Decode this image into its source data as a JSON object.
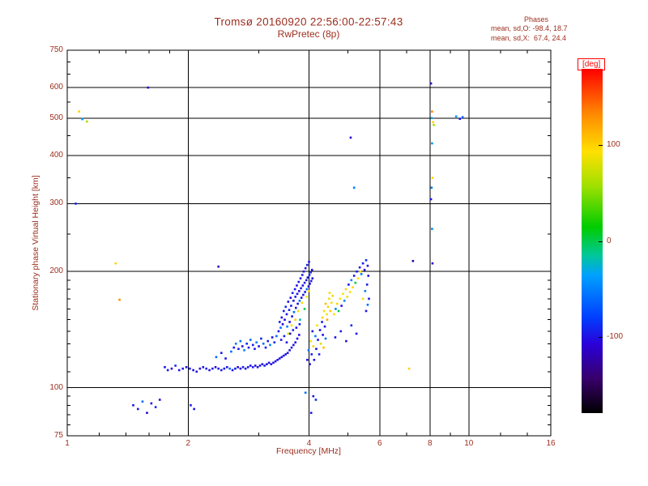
{
  "chart_data": {
    "type": "scatter",
    "title": "Tromsø 20160920 22:56:00-22:57:43",
    "subtitle": "RwPretec (8p)",
    "stats": {
      "title": "Phases",
      "o": "mean, sd,O: -98.4, 18.7",
      "x": "mean, sd,X:  67.4, 24.4"
    },
    "xlabel": "Frequency [MHz]",
    "ylabel": "Stationary phase Virtual Height [km]",
    "x_scale": "log",
    "x_range": [
      1,
      16
    ],
    "x_ticks": [
      1,
      2,
      4,
      6,
      8,
      10,
      16
    ],
    "x_minor_ticks": [
      1.2,
      1.4,
      1.6,
      1.8,
      3,
      5,
      7,
      9,
      12,
      14
    ],
    "y_scale": "log",
    "y_range": [
      75,
      750
    ],
    "y_ticks": [
      75,
      100,
      200,
      300,
      400,
      500,
      600,
      750
    ],
    "y_minor_ticks": [
      80,
      85,
      90,
      95,
      110,
      120,
      130,
      140,
      150,
      160,
      170,
      180,
      190,
      250,
      350,
      450,
      550,
      650,
      700
    ],
    "grid": true,
    "colorbar": {
      "label": "[deg]",
      "range": [
        -180,
        180
      ],
      "ticks": [
        100,
        0,
        -100
      ],
      "stops": [
        [
          0.0,
          "#000000"
        ],
        [
          0.1,
          "#38006b"
        ],
        [
          0.2,
          "#2a00d8"
        ],
        [
          0.28,
          "#0040ff"
        ],
        [
          0.4,
          "#00a0ff"
        ],
        [
          0.46,
          "#00c896"
        ],
        [
          0.54,
          "#00cc00"
        ],
        [
          0.66,
          "#a0e000"
        ],
        [
          0.76,
          "#ffe000"
        ],
        [
          0.87,
          "#ff8800"
        ],
        [
          1.0,
          "#ff0000"
        ]
      ]
    },
    "colors": {
      "text": "#9c2f1e",
      "axis": "#000000",
      "deg_label": "#ff0000",
      "background": "#ffffff"
    },
    "points": [
      [
        1.75,
        113,
        -100
      ],
      [
        1.78,
        111,
        -95
      ],
      [
        1.82,
        112,
        -105
      ],
      [
        1.86,
        114,
        -90
      ],
      [
        1.9,
        111,
        -100
      ],
      [
        1.94,
        112,
        -98
      ],
      [
        1.98,
        113,
        -102
      ],
      [
        2.02,
        112,
        -95
      ],
      [
        2.06,
        111,
        -100
      ],
      [
        2.1,
        110,
        -97
      ],
      [
        2.14,
        112,
        -103
      ],
      [
        2.18,
        113,
        -100
      ],
      [
        2.22,
        112,
        -96
      ],
      [
        2.26,
        111,
        -101
      ],
      [
        2.3,
        112,
        -99
      ],
      [
        2.34,
        113,
        -104
      ],
      [
        2.38,
        112,
        -100
      ],
      [
        2.42,
        111,
        -95
      ],
      [
        2.46,
        112,
        -102
      ],
      [
        2.5,
        113,
        -100
      ],
      [
        2.54,
        112,
        -60
      ],
      [
        2.58,
        111,
        -100
      ],
      [
        2.62,
        112,
        -98
      ],
      [
        2.66,
        113,
        -105
      ],
      [
        2.7,
        112,
        -100
      ],
      [
        2.74,
        113,
        -95
      ],
      [
        2.78,
        112,
        -101
      ],
      [
        2.82,
        113,
        -99
      ],
      [
        2.86,
        114,
        -100
      ],
      [
        2.9,
        113,
        -97
      ],
      [
        2.94,
        114,
        -102
      ],
      [
        2.98,
        113,
        -100
      ],
      [
        3.02,
        114,
        -98
      ],
      [
        3.06,
        115,
        -100
      ],
      [
        3.1,
        114,
        -95
      ],
      [
        3.14,
        115,
        -103
      ],
      [
        3.18,
        116,
        -100
      ],
      [
        3.22,
        115,
        -99
      ],
      [
        3.26,
        116,
        -101
      ],
      [
        3.3,
        117,
        -100
      ],
      [
        3.34,
        118,
        -98
      ],
      [
        3.38,
        119,
        -102
      ],
      [
        3.42,
        120,
        -100
      ],
      [
        3.46,
        121,
        -97
      ],
      [
        3.5,
        122,
        -100
      ],
      [
        3.54,
        123,
        -99
      ],
      [
        3.58,
        125,
        -101
      ],
      [
        3.62,
        127,
        -100
      ],
      [
        3.66,
        129,
        -98
      ],
      [
        3.7,
        131,
        -100
      ],
      [
        3.74,
        134,
        -102
      ],
      [
        3.78,
        137,
        -100
      ],
      [
        2.35,
        120,
        -60
      ],
      [
        2.42,
        123,
        -95
      ],
      [
        2.48,
        119,
        -100
      ],
      [
        2.56,
        124,
        -60
      ],
      [
        2.6,
        127,
        -100
      ],
      [
        2.63,
        130,
        -55
      ],
      [
        2.67,
        126,
        -95
      ],
      [
        2.7,
        132,
        -60
      ],
      [
        2.73,
        128,
        -100
      ],
      [
        2.76,
        125,
        -50
      ],
      [
        2.8,
        130,
        -90
      ],
      [
        2.83,
        127,
        -100
      ],
      [
        2.86,
        133,
        -60
      ],
      [
        2.9,
        129,
        -95
      ],
      [
        2.93,
        126,
        -100
      ],
      [
        2.96,
        131,
        -55
      ],
      [
        3.0,
        128,
        -100
      ],
      [
        3.04,
        134,
        -90
      ],
      [
        3.08,
        130,
        -60
      ],
      [
        3.12,
        127,
        -100
      ],
      [
        3.16,
        132,
        -95
      ],
      [
        3.2,
        129,
        -50
      ],
      [
        3.24,
        135,
        -100
      ],
      [
        3.28,
        131,
        -90
      ],
      [
        3.32,
        136,
        -60
      ],
      [
        3.36,
        140,
        -100
      ],
      [
        3.38,
        148,
        -95
      ],
      [
        3.4,
        143,
        -60
      ],
      [
        3.42,
        152,
        -100
      ],
      [
        3.44,
        146,
        -105
      ],
      [
        3.46,
        158,
        -95
      ],
      [
        3.48,
        150,
        -100
      ],
      [
        3.5,
        162,
        -90
      ],
      [
        3.52,
        155,
        -100
      ],
      [
        3.53,
        144,
        -55
      ],
      [
        3.55,
        167,
        -100
      ],
      [
        3.57,
        159,
        -95
      ],
      [
        3.58,
        148,
        -100
      ],
      [
        3.6,
        171,
        -105
      ],
      [
        3.61,
        163,
        -98
      ],
      [
        3.63,
        153,
        -100
      ],
      [
        3.64,
        176,
        -90
      ],
      [
        3.66,
        168,
        -100
      ],
      [
        3.67,
        157,
        -60
      ],
      [
        3.69,
        180,
        -100
      ],
      [
        3.7,
        172,
        -95
      ],
      [
        3.71,
        161,
        -100
      ],
      [
        3.73,
        184,
        -102
      ],
      [
        3.74,
        175,
        -98
      ],
      [
        3.75,
        165,
        -100
      ],
      [
        3.77,
        188,
        -95
      ],
      [
        3.78,
        178,
        -100
      ],
      [
        3.79,
        168,
        -55
      ],
      [
        3.81,
        192,
        -100
      ],
      [
        3.82,
        181,
        -97
      ],
      [
        3.83,
        171,
        -100
      ],
      [
        3.85,
        196,
        -92
      ],
      [
        3.86,
        184,
        -100
      ],
      [
        3.87,
        174,
        -99
      ],
      [
        3.88,
        200,
        -100
      ],
      [
        3.9,
        187,
        -95
      ],
      [
        3.91,
        177,
        -100
      ],
      [
        3.92,
        204,
        -101
      ],
      [
        3.94,
        190,
        -100
      ],
      [
        3.95,
        180,
        -60
      ],
      [
        3.96,
        208,
        -95
      ],
      [
        3.97,
        193,
        -100
      ],
      [
        3.99,
        183,
        -98
      ],
      [
        4.0,
        212,
        -100
      ],
      [
        4.01,
        196,
        -90
      ],
      [
        4.02,
        186,
        -100
      ],
      [
        4.04,
        199,
        -95
      ],
      [
        4.05,
        189,
        -100
      ],
      [
        4.07,
        202,
        -97
      ],
      [
        4.08,
        192,
        -100
      ],
      [
        3.62,
        145,
        90
      ],
      [
        3.7,
        150,
        100
      ],
      [
        3.76,
        158,
        85
      ],
      [
        3.84,
        166,
        95
      ],
      [
        3.9,
        160,
        0
      ],
      [
        3.95,
        172,
        90
      ],
      [
        4.0,
        178,
        100
      ],
      [
        3.55,
        138,
        80
      ],
      [
        3.8,
        150,
        -20
      ],
      [
        3.41,
        133,
        -100
      ],
      [
        3.47,
        136,
        -95
      ],
      [
        3.52,
        131,
        -100
      ],
      [
        3.59,
        138,
        -100
      ],
      [
        3.65,
        141,
        -90
      ],
      [
        3.72,
        143,
        -100
      ],
      [
        3.79,
        146,
        -95
      ],
      [
        3.96,
        118,
        -100
      ],
      [
        3.99,
        125,
        -60
      ],
      [
        4.02,
        115,
        -100
      ],
      [
        4.04,
        132,
        90
      ],
      [
        4.06,
        122,
        -95
      ],
      [
        4.08,
        140,
        -100
      ],
      [
        4.1,
        128,
        100
      ],
      [
        4.12,
        118,
        -100
      ],
      [
        4.15,
        136,
        -55
      ],
      [
        4.17,
        126,
        -100
      ],
      [
        4.19,
        145,
        95
      ],
      [
        4.21,
        133,
        -100
      ],
      [
        4.24,
        122,
        -90
      ],
      [
        4.26,
        141,
        -100
      ],
      [
        4.28,
        130,
        80
      ],
      [
        4.31,
        148,
        -95
      ],
      [
        4.33,
        137,
        -100
      ],
      [
        4.35,
        127,
        110
      ],
      [
        4.38,
        144,
        -100
      ],
      [
        4.4,
        134,
        -60
      ],
      [
        4.32,
        152,
        100
      ],
      [
        4.36,
        158,
        95
      ],
      [
        4.4,
        165,
        110
      ],
      [
        4.43,
        155,
        90
      ],
      [
        4.46,
        162,
        100
      ],
      [
        4.49,
        170,
        85
      ],
      [
        4.52,
        158,
        105
      ],
      [
        4.55,
        166,
        95
      ],
      [
        4.58,
        173,
        100
      ],
      [
        4.44,
        150,
        120
      ],
      [
        4.5,
        176,
        90
      ],
      [
        4.62,
        155,
        90
      ],
      [
        4.66,
        160,
        -50
      ],
      [
        4.7,
        165,
        100
      ],
      [
        4.74,
        158,
        0
      ],
      [
        4.78,
        170,
        95
      ],
      [
        4.82,
        163,
        -100
      ],
      [
        4.86,
        175,
        90
      ],
      [
        4.9,
        168,
        -50
      ],
      [
        4.94,
        180,
        100
      ],
      [
        4.98,
        172,
        85
      ],
      [
        5.02,
        185,
        -95
      ],
      [
        5.06,
        177,
        90
      ],
      [
        5.1,
        190,
        -50
      ],
      [
        5.14,
        182,
        100
      ],
      [
        5.18,
        195,
        -100
      ],
      [
        5.22,
        187,
        0
      ],
      [
        5.26,
        200,
        -95
      ],
      [
        5.3,
        192,
        90
      ],
      [
        5.35,
        205,
        -100
      ],
      [
        5.4,
        197,
        -55
      ],
      [
        5.45,
        210,
        -95
      ],
      [
        5.5,
        202,
        -100
      ],
      [
        5.55,
        214,
        -90
      ],
      [
        5.6,
        207,
        -100
      ],
      [
        5.45,
        170,
        90
      ],
      [
        5.52,
        178,
        -50
      ],
      [
        5.58,
        185,
        -95
      ],
      [
        5.62,
        195,
        -100
      ],
      [
        5.55,
        158,
        -100
      ],
      [
        5.6,
        164,
        -60
      ],
      [
        5.64,
        170,
        -95
      ],
      [
        4.65,
        135,
        -100
      ],
      [
        4.8,
        140,
        -95
      ],
      [
        4.95,
        132,
        -100
      ],
      [
        5.1,
        145,
        -90
      ],
      [
        5.25,
        138,
        -100
      ],
      [
        1.46,
        90,
        -100
      ],
      [
        1.5,
        88,
        -95
      ],
      [
        1.54,
        92,
        -60
      ],
      [
        1.58,
        86,
        -105
      ],
      [
        1.62,
        91,
        -100
      ],
      [
        1.66,
        89,
        -90
      ],
      [
        1.7,
        93,
        -100
      ],
      [
        2.03,
        90,
        -95
      ],
      [
        2.07,
        88,
        -100
      ],
      [
        4.1,
        95,
        -100
      ],
      [
        4.16,
        93,
        -90
      ],
      [
        4.05,
        86,
        -100
      ],
      [
        3.92,
        97,
        -60
      ],
      [
        1.05,
        300,
        -90
      ],
      [
        1.07,
        520,
        100
      ],
      [
        1.09,
        497,
        -40
      ],
      [
        1.12,
        490,
        60
      ],
      [
        1.32,
        210,
        100
      ],
      [
        1.35,
        169,
        130
      ],
      [
        1.59,
        600,
        -120
      ],
      [
        2.38,
        206,
        -110
      ],
      [
        5.08,
        445,
        -110
      ],
      [
        5.18,
        330,
        -50
      ],
      [
        5.37,
        200,
        90
      ],
      [
        7.1,
        112,
        100
      ],
      [
        7.26,
        213,
        -120
      ],
      [
        8.05,
        615,
        -120
      ],
      [
        8.1,
        520,
        130
      ],
      [
        8.08,
        500,
        -30
      ],
      [
        8.15,
        488,
        100
      ],
      [
        8.1,
        430,
        -40
      ],
      [
        8.12,
        350,
        100
      ],
      [
        8.08,
        330,
        -50
      ],
      [
        8.05,
        308,
        -100
      ],
      [
        8.1,
        258,
        -45
      ],
      [
        8.12,
        210,
        -110
      ],
      [
        8.18,
        480,
        60
      ],
      [
        9.3,
        505,
        -40
      ],
      [
        9.5,
        498,
        -100
      ],
      [
        9.65,
        503,
        -60
      ]
    ]
  }
}
